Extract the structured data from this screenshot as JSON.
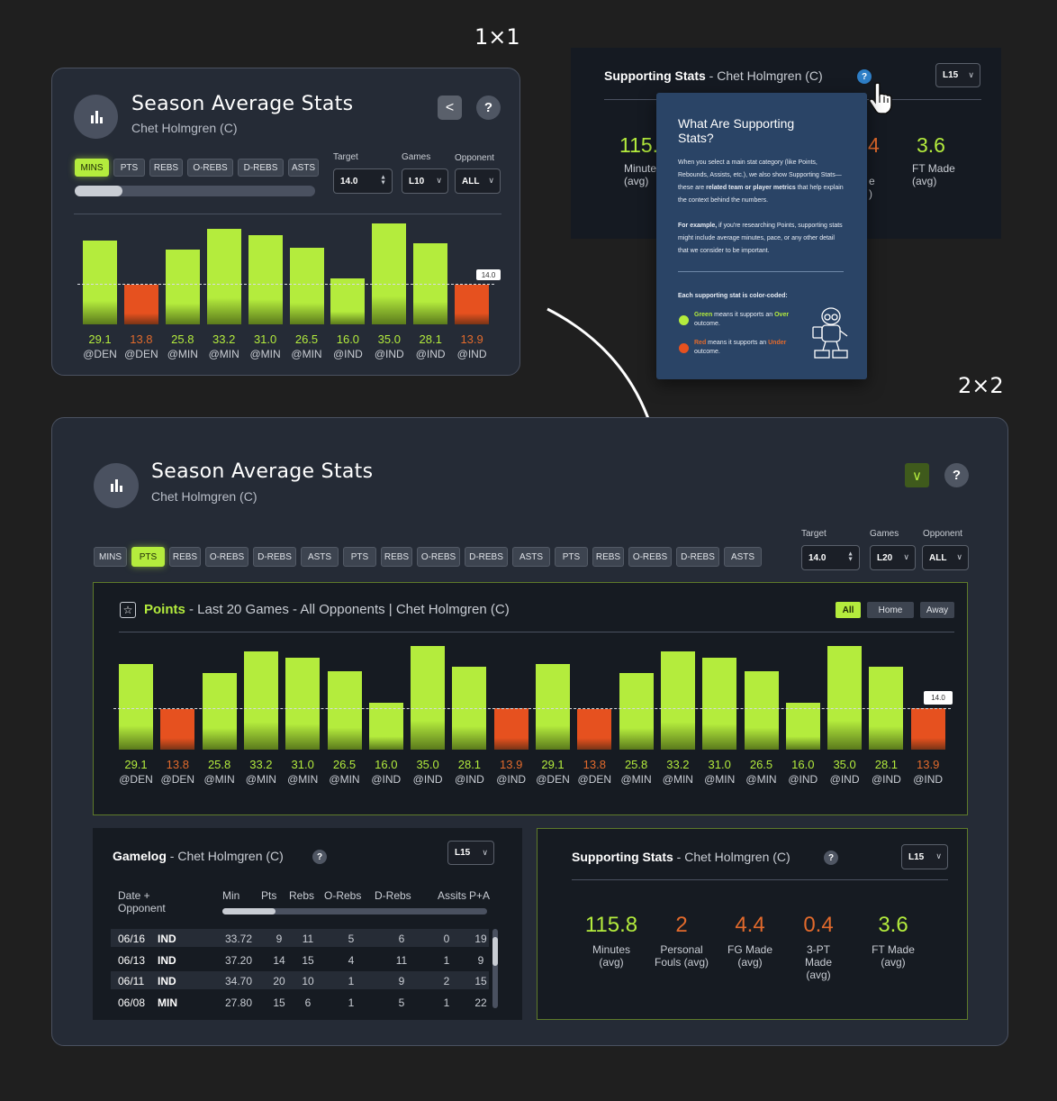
{
  "labels": {
    "one_by_one": "1×1",
    "two_by_two": "2×2"
  },
  "colors": {
    "accent_green": "#b4ec3d",
    "accent_red": "#e6511f",
    "panel_bg": "#252b36",
    "tooltip_bg": "#2a4466"
  },
  "card1": {
    "title": "Season Average Stats",
    "subtitle": "Chet Holmgren (C)",
    "back_icon": "<",
    "help_icon": "?",
    "chips": [
      "MINS",
      "PTS",
      "REBS",
      "O-REBS",
      "D-REBS",
      "ASTS"
    ],
    "active_chip": "MINS",
    "target_label": "Target",
    "target_value": "14.0",
    "games_label": "Games",
    "games_value": "L10",
    "opponent_label": "Opponent",
    "opponent_value": "ALL",
    "target_tag": "14.0"
  },
  "supporting_top": {
    "title": "Supporting Stats",
    "player": " - Chet Holmgren (C)",
    "range": "L15",
    "stat1_value": "115.",
    "stat1_label": "Minute",
    "stat1_sub": "(avg)",
    "stat_mid_value": "4",
    "stat_mid_lbl1": "e",
    "stat_mid_lbl2": ")",
    "stat5_value": "3.6",
    "stat5_label": "FT Made",
    "stat5_sub": "(avg)"
  },
  "tooltip": {
    "title": "What Are Supporting Stats?",
    "para1_a": "When you select a main stat category (like Points, Rebounds, Assists, etc.), we also show Supporting Stats—these are ",
    "para1_bold": "related team or player metrics",
    "para1_b": " that help explain the context behind the numbers.",
    "para2_bold": "For example,",
    "para2": " if you're researching Points, supporting stats might include average minutes, pace, or any other detail that we consider to be important.",
    "legend_title": "Each supporting stat is color-coded:",
    "green_word": "Green",
    "green_text": " means it supports an ",
    "green_outcome": "Over",
    "green_end": " outcome.",
    "red_word": "Red",
    "red_text": " means it supports an ",
    "red_outcome": "Under",
    "red_end": " outcome."
  },
  "card2": {
    "title": "Season Average Stats",
    "subtitle": "Chet Holmgren (C)",
    "collapse_icon": "∨",
    "help_icon": "?",
    "chips": [
      "MINS",
      "PTS",
      "REBS",
      "O-REBS",
      "D-REBS",
      "ASTS",
      "PTS",
      "REBS",
      "O-REBS",
      "D-REBS",
      "ASTS",
      "PTS",
      "REBS",
      "O-REBS",
      "D-REBS",
      "ASTS"
    ],
    "active_chip_index": 1,
    "target_label": "Target",
    "target_value": "14.0",
    "games_label": "Games",
    "games_value": "L20",
    "opponent_label": "Opponent",
    "opponent_value": "ALL"
  },
  "points_panel": {
    "star_icon": "☆",
    "stat": "Points",
    "context": " - Last 20 Games - All Opponents | Chet Holmgren (C)",
    "seg_all": "All",
    "seg_home": "Home",
    "seg_away": "Away",
    "target_tag": "14.0"
  },
  "chart_data": [
    {
      "type": "bar",
      "target": 14.0,
      "categories": [
        "@DEN",
        "@DEN",
        "@MIN",
        "@MIN",
        "@MIN",
        "@MIN",
        "@IND",
        "@IND",
        "@IND",
        "@IND"
      ],
      "values": [
        29.1,
        13.8,
        25.8,
        33.2,
        31.0,
        26.5,
        16.0,
        35.0,
        28.1,
        13.9
      ],
      "labels": [
        "29.1",
        "13.8",
        "25.8",
        "33.2",
        "31.0",
        "26.5",
        "16.0",
        "35.0",
        "28.1",
        "13.9"
      ],
      "over": [
        true,
        false,
        true,
        true,
        true,
        true,
        true,
        true,
        true,
        false
      ]
    },
    {
      "type": "bar",
      "target": 14.0,
      "categories": [
        "@DEN",
        "@DEN",
        "@MIN",
        "@MIN",
        "@MIN",
        "@MIN",
        "@IND",
        "@IND",
        "@IND",
        "@IND",
        "@DEN",
        "@DEN",
        "@MIN",
        "@MIN",
        "@MIN",
        "@MIN",
        "@IND",
        "@IND",
        "@IND",
        "@IND"
      ],
      "values": [
        29.1,
        13.8,
        25.8,
        33.2,
        31.0,
        26.5,
        16.0,
        35.0,
        28.1,
        13.9,
        29.1,
        13.8,
        25.8,
        33.2,
        31.0,
        26.5,
        16.0,
        35.0,
        28.1,
        13.9
      ],
      "labels": [
        "29.1",
        "13.8",
        "25.8",
        "33.2",
        "31.0",
        "26.5",
        "16.0",
        "35.0",
        "28.1",
        "13.9",
        "29.1",
        "13.8",
        "25.8",
        "33.2",
        "31.0",
        "26.5",
        "16.0",
        "35.0",
        "28.1",
        "13.9"
      ],
      "over": [
        true,
        false,
        true,
        true,
        true,
        true,
        true,
        true,
        true,
        false,
        true,
        false,
        true,
        true,
        true,
        true,
        true,
        true,
        true,
        false
      ]
    }
  ],
  "gamelog": {
    "title": "Gamelog",
    "player": " - Chet Holmgren (C)",
    "help_icon": "?",
    "range": "L15",
    "headers": [
      "Date +",
      "Opponent",
      "Min",
      "Pts",
      "Rebs",
      "O-Rebs",
      "D-Rebs",
      "Assits",
      "P+A"
    ],
    "rows": [
      [
        "06/16",
        "IND",
        "33.72",
        "9",
        "11",
        "5",
        "6",
        "0",
        "19"
      ],
      [
        "06/13",
        "IND",
        "37.20",
        "14",
        "15",
        "4",
        "11",
        "1",
        "9"
      ],
      [
        "06/11",
        "IND",
        "34.70",
        "20",
        "10",
        "1",
        "9",
        "2",
        "15"
      ],
      [
        "06/08",
        "MIN",
        "27.80",
        "15",
        "6",
        "1",
        "5",
        "1",
        "22"
      ]
    ]
  },
  "supporting_bottom": {
    "title": "Supporting Stats",
    "player": " - Chet Holmgren (C)",
    "help_icon": "?",
    "range": "L15",
    "stats": [
      {
        "value": "115.8",
        "label1": "Minutes",
        "label2": "(avg)",
        "label3": "",
        "color": "#b4ec3d"
      },
      {
        "value": "2",
        "label1": "Personal",
        "label2": "Fouls (avg)",
        "label3": "",
        "color": "#e26a2c"
      },
      {
        "value": "4.4",
        "label1": "FG Made",
        "label2": "(avg)",
        "label3": "",
        "color": "#e26a2c"
      },
      {
        "value": "0.4",
        "label1": "3-PT",
        "label2": "Made",
        "label3": "(avg)",
        "color": "#e26a2c"
      },
      {
        "value": "3.6",
        "label1": "FT Made",
        "label2": "(avg)",
        "label3": "",
        "color": "#b4ec3d"
      }
    ]
  }
}
